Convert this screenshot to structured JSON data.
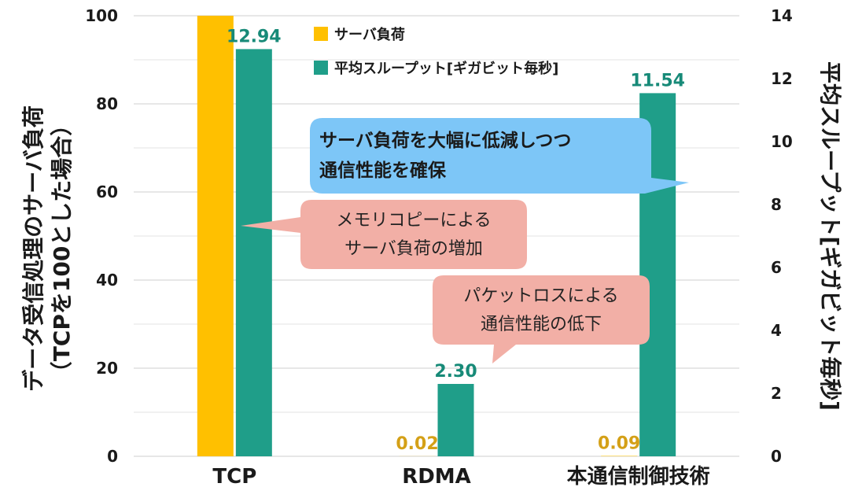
{
  "chart_data": {
    "type": "bar",
    "categories": [
      "TCP",
      "RDMA",
      "本通信制御技術"
    ],
    "series": [
      {
        "name": "サーバ負荷",
        "axis": "left",
        "values": [
          100,
          0.02,
          0.09
        ],
        "labels": [
          "",
          "0.02",
          "0.09"
        ],
        "color": "#FFC000",
        "label_color": "#D4A017"
      },
      {
        "name": "平均スループット[ギガビット毎秒]",
        "axis": "right",
        "values": [
          12.94,
          2.3,
          11.54
        ],
        "labels": [
          "12.94",
          "2.30",
          "11.54"
        ],
        "color": "#1F9E89",
        "label_color": "#178A78"
      }
    ],
    "y_left": {
      "label_line1": "データ受信処理のサーバ負荷",
      "label_line2": "（TCPを100とした場合）",
      "ylim": [
        0,
        100
      ],
      "ticks": [
        "0",
        "20",
        "40",
        "60",
        "80",
        "100"
      ]
    },
    "y_right": {
      "label": "平均スループット[ギガビット毎秒]",
      "ylim": [
        0,
        14
      ],
      "ticks": [
        "0",
        "2",
        "4",
        "6",
        "8",
        "10",
        "12",
        "14"
      ]
    },
    "grid": true,
    "legend_position": "top-center",
    "annotations": [
      {
        "lines": [
          "サーバ負荷を大幅に低減しつつ",
          "通信性能を確保"
        ],
        "style": "blue",
        "bold": true,
        "fill": "#7DC6F7"
      },
      {
        "lines": [
          "メモリコピーによる",
          "サーバ負荷の増加"
        ],
        "style": "red",
        "bold": false,
        "fill": "#F2AFA6"
      },
      {
        "lines": [
          "パケットロスによる",
          "通信性能の低下"
        ],
        "style": "red",
        "bold": false,
        "fill": "#F2AFA6"
      }
    ]
  }
}
